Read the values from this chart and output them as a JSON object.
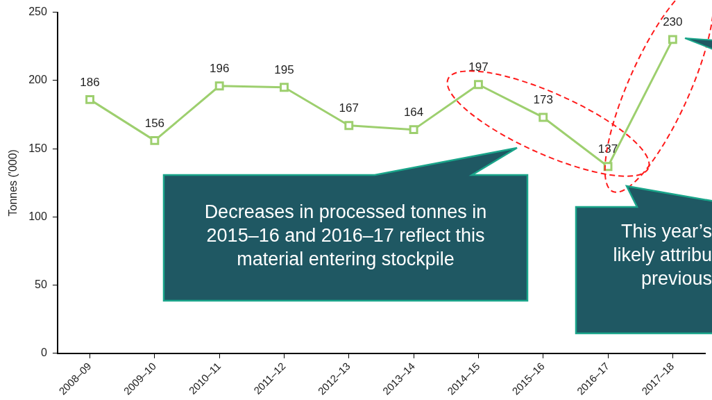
{
  "chart_data": {
    "type": "line",
    "ylabel": "Tonnes ('000)",
    "categories": [
      "2008–09",
      "2009–10",
      "2010–11",
      "2011–12",
      "2012–13",
      "2013–14",
      "2014–15",
      "2015–16",
      "2016–17",
      "2017–18"
    ],
    "series": [
      {
        "color": "#9dcf6e",
        "values": [
          186,
          156,
          196,
          195,
          167,
          164,
          197,
          173,
          137,
          230
        ]
      }
    ],
    "ylim": [
      0,
      250
    ],
    "yticks": [
      0,
      50,
      100,
      150,
      200,
      250
    ],
    "grid": false,
    "legend": false,
    "marker": "square",
    "line_style": "solid",
    "data_labels": true,
    "annotations": [
      "Decreases in processed tonnes in\n2015–16 and 2016–17 reflect this\nmaterial entering stockpile",
      "This year’s\nlikely attribu\nprevious"
    ]
  }
}
